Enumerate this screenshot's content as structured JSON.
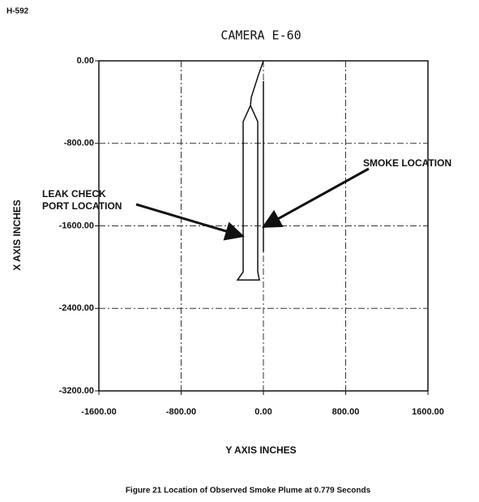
{
  "page_label": "H-592",
  "chart_data": {
    "type": "line",
    "title": "CAMERA E-60",
    "xlabel": "Y AXIS INCHES",
    "ylabel": "X AXIS INCHES",
    "xlim": [
      -1600,
      1600
    ],
    "ylim": [
      -3200,
      0
    ],
    "xticks": [
      {
        "value": -1600,
        "label": "-1600.00"
      },
      {
        "value": -800,
        "label": "-800.00"
      },
      {
        "value": 0,
        "label": "0.00"
      },
      {
        "value": 800,
        "label": "800.00"
      },
      {
        "value": 1600,
        "label": "1600.00"
      }
    ],
    "yticks": [
      {
        "value": 0,
        "label": "0.00"
      },
      {
        "value": -800,
        "label": "-800.00"
      },
      {
        "value": -1600,
        "label": "-1600.00"
      },
      {
        "value": -2400,
        "label": "-2400.00"
      },
      {
        "value": -3200,
        "label": "-3200.00"
      }
    ],
    "grid": true,
    "series": [
      {
        "color": "#111111",
        "x": [
          0,
          -55,
          -118,
          -126,
          -197,
          -197,
          -252,
          -39,
          -55,
          -55,
          -126
        ],
        "values": [
          0,
          -157,
          -354,
          -433,
          -590,
          -2046,
          -2125,
          -2125,
          -2046,
          -590,
          -433
        ]
      },
      {
        "color": "#111111",
        "x": [
          0,
          0
        ],
        "values": [
          -197,
          -1850
        ]
      }
    ],
    "annotations": [
      {
        "lines": [
          "SMOKE LOCATION"
        ],
        "x": 0,
        "y": -1610
      },
      {
        "lines": [
          "LEAK CHECK",
          "PORT LOCATION"
        ],
        "x": -200,
        "y": -1700
      }
    ]
  },
  "caption": "Figure 21  Location of Observed Smoke Plume at 0.779 Seconds"
}
